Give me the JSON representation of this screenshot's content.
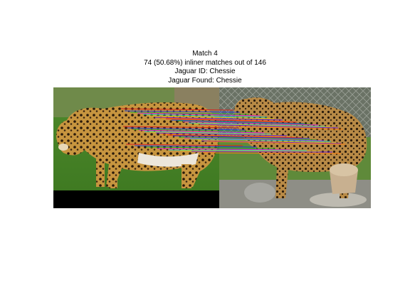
{
  "figure": {
    "title_lines": [
      "Match 4",
      "74 (50.68%) inliner matches out of 146",
      "Jaguar ID: Chessie",
      "Jaguar Found: Chessie"
    ]
  },
  "match": {
    "number": 4,
    "inliers": 74,
    "total": 146,
    "inlier_percent": 50.68,
    "jaguar_id": "Chessie",
    "jaguar_found": "Chessie"
  },
  "images": {
    "left": "jaguar-left-icon",
    "right": "jaguar-right-icon"
  },
  "colors": {
    "background": "#ffffff",
    "text": "#000000",
    "padding_bar": "#000000",
    "match_lines": [
      "#d61f1f",
      "#1f3bd6",
      "#1fae2a",
      "#d61fd6",
      "#1fc7c7",
      "#e0c81a",
      "#6a1fd6",
      "#ff7f0e"
    ]
  }
}
